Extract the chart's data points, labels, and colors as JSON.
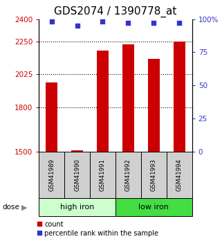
{
  "title": "GDS2074 / 1390778_at",
  "samples": [
    "GSM41989",
    "GSM41990",
    "GSM41991",
    "GSM41992",
    "GSM41993",
    "GSM41994"
  ],
  "bar_values": [
    1970,
    1510,
    2185,
    2230,
    2130,
    2250
  ],
  "percentile_values": [
    98,
    95,
    98,
    97,
    97,
    97
  ],
  "bar_color": "#cc0000",
  "dot_color": "#3333cc",
  "ylim_left": [
    1500,
    2400
  ],
  "ylim_right": [
    0,
    100
  ],
  "yticks_left": [
    1500,
    1800,
    2025,
    2250,
    2400
  ],
  "ytick_labels_left": [
    "1500",
    "1800",
    "2025",
    "2250",
    "2400"
  ],
  "yticks_right": [
    0,
    25,
    50,
    75,
    100
  ],
  "ytick_labels_right": [
    "0",
    "25",
    "50",
    "75",
    "100%"
  ],
  "groups": [
    {
      "label": "high iron",
      "indices": [
        0,
        1,
        2
      ],
      "color": "#ccffcc"
    },
    {
      "label": "low iron",
      "indices": [
        3,
        4,
        5
      ],
      "color": "#44dd44"
    }
  ],
  "dose_label": "dose",
  "legend_count_label": "count",
  "legend_percentile_label": "percentile rank within the sample",
  "title_fontsize": 11,
  "axis_label_color_left": "#cc0000",
  "axis_label_color_right": "#3333cc",
  "grid_ticks": [
    1800,
    2025,
    2250
  ]
}
